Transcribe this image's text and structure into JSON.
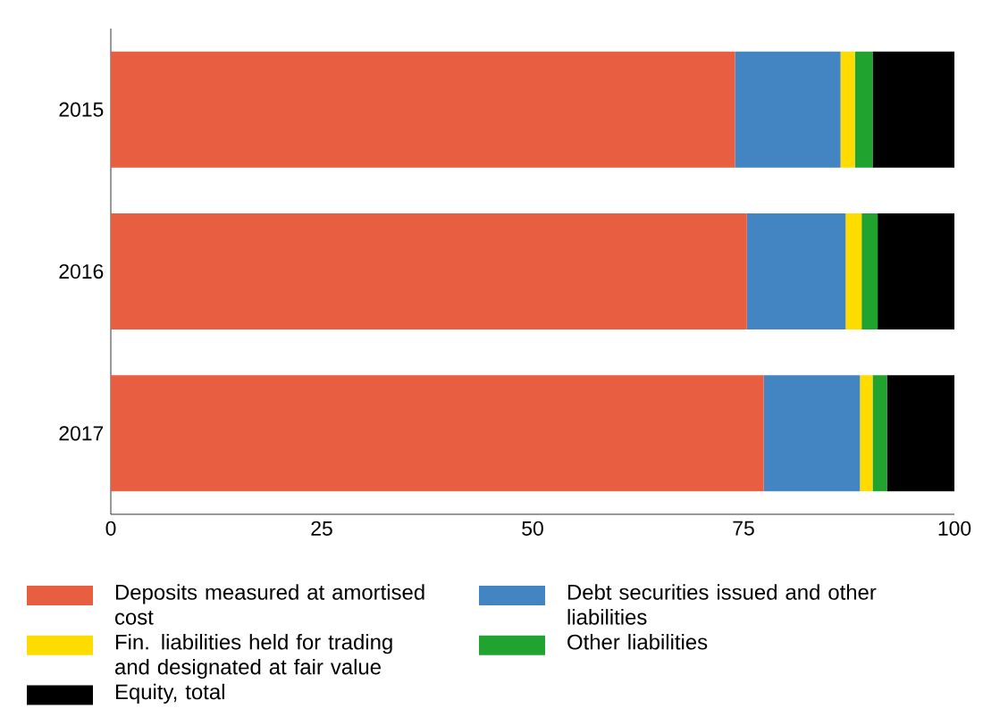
{
  "chart_data": {
    "type": "bar",
    "orientation": "horizontal",
    "stacked": true,
    "categories": [
      "2015",
      "2016",
      "2017"
    ],
    "series": [
      {
        "name": "Deposits measured at amortised cost",
        "color": "#e85e40",
        "values": [
          74.0,
          75.4,
          77.4
        ]
      },
      {
        "name": "Debt securities issued and other liabilities",
        "color": "#4285c2",
        "values": [
          12.5,
          11.7,
          11.4
        ]
      },
      {
        "name": "Fin. liabilities held for trading and designated at fair value",
        "color": "#ffdc00",
        "values": [
          1.7,
          1.9,
          1.5
        ]
      },
      {
        "name": "Other liabilities",
        "color": "#21a32f",
        "values": [
          2.1,
          1.9,
          1.7
        ]
      },
      {
        "name": "Equity, total",
        "color": "#000000",
        "values": [
          9.7,
          9.1,
          8.0
        ]
      }
    ],
    "xlim": [
      0,
      100
    ],
    "xticks": [
      0,
      25,
      50,
      75,
      100
    ],
    "grid": false,
    "legend": "bottom"
  }
}
